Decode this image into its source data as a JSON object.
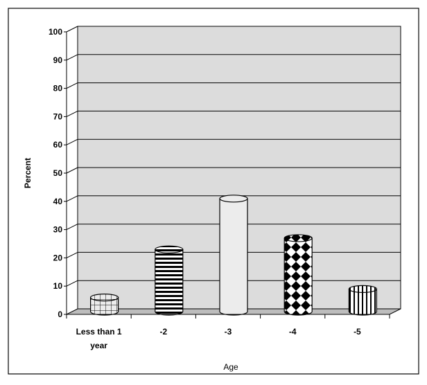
{
  "chart_data": {
    "type": "bar",
    "categories": [
      "Less than 1 year",
      "-2",
      "-3",
      "-4",
      "-5"
    ],
    "category_lines": [
      [
        "Less than 1",
        "year"
      ],
      [
        "-2"
      ],
      [
        "-3"
      ],
      [
        "-4"
      ],
      [
        "-5"
      ]
    ],
    "values": [
      5,
      22,
      40,
      26,
      8
    ],
    "bar_patterns": [
      "grid",
      "horizontal-stripes",
      "solid",
      "diamonds",
      "vertical-stripes"
    ],
    "xlabel": "Age",
    "ylabel": "Percent",
    "ylim": [
      0,
      100
    ],
    "yticks": [
      0,
      10,
      20,
      30,
      40,
      50,
      60,
      70,
      80,
      90,
      100
    ],
    "grid": true,
    "style": "3d-cylinder",
    "colors": {
      "plot_background": "#dcdcdc",
      "floor": "#bdbdbd",
      "bar_fill": "#ececec",
      "bar_stroke": "#000000",
      "pattern": "#000000"
    }
  }
}
